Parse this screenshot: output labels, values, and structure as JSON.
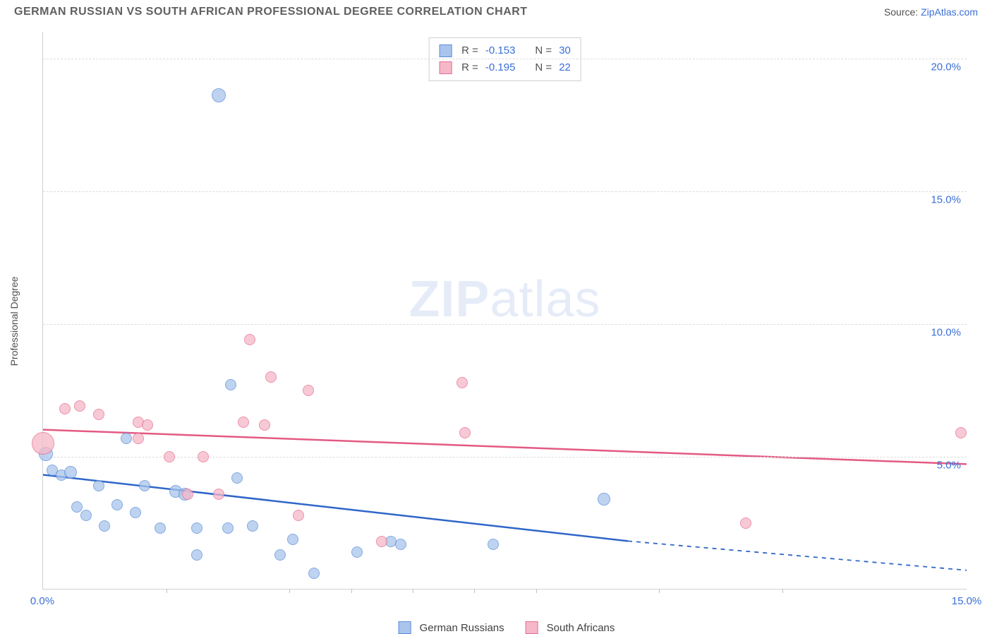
{
  "title": "GERMAN RUSSIAN VS SOUTH AFRICAN PROFESSIONAL DEGREE CORRELATION CHART",
  "source_prefix": "Source: ",
  "source_name": "ZipAtlas.com",
  "y_axis_label": "Professional Degree",
  "watermark_bold": "ZIP",
  "watermark_rest": "atlas",
  "chart": {
    "type": "scatter",
    "background_color": "#ffffff",
    "grid_color": "#dcdcdc",
    "axis_color": "#d0d0d0",
    "xlim": [
      0,
      15
    ],
    "ylim": [
      0,
      21
    ],
    "x_tick_labels": [
      {
        "v": 0,
        "t": "0.0%"
      },
      {
        "v": 15,
        "t": "15.0%"
      }
    ],
    "x_minor_ticks": [
      2,
      4,
      5,
      6,
      7,
      8,
      10,
      12
    ],
    "y_ticks": [
      {
        "v": 5,
        "t": "5.0%",
        "dashed": true
      },
      {
        "v": 10,
        "t": "10.0%",
        "dashed": true
      },
      {
        "v": 15,
        "t": "15.0%",
        "dashed": true
      },
      {
        "v": 20,
        "t": "20.0%",
        "dashed": true
      }
    ],
    "series": [
      {
        "name": "German Russians",
        "fill": "#a9c5ec",
        "stroke": "#5b8dd9",
        "line_color": "#2f66c9",
        "r_label": "R = ",
        "r_value": "-0.153",
        "n_label": "N = ",
        "n_value": "30",
        "trend": {
          "x1": 0,
          "y1": 4.3,
          "x2": 9.5,
          "y2": 1.8,
          "dash_x2": 15,
          "dash_y2": 0.7
        },
        "points": [
          {
            "x": 0.05,
            "y": 5.1,
            "r": 10
          },
          {
            "x": 0.15,
            "y": 4.5,
            "r": 8
          },
          {
            "x": 0.3,
            "y": 4.3,
            "r": 8
          },
          {
            "x": 0.45,
            "y": 4.4,
            "r": 9
          },
          {
            "x": 0.55,
            "y": 3.1,
            "r": 8
          },
          {
            "x": 0.9,
            "y": 3.9,
            "r": 8
          },
          {
            "x": 0.7,
            "y": 2.8,
            "r": 8
          },
          {
            "x": 1.2,
            "y": 3.2,
            "r": 8
          },
          {
            "x": 1.0,
            "y": 2.4,
            "r": 8
          },
          {
            "x": 1.35,
            "y": 5.7,
            "r": 8
          },
          {
            "x": 1.5,
            "y": 2.9,
            "r": 8
          },
          {
            "x": 1.65,
            "y": 3.9,
            "r": 8
          },
          {
            "x": 1.9,
            "y": 2.3,
            "r": 8
          },
          {
            "x": 2.15,
            "y": 3.7,
            "r": 9
          },
          {
            "x": 2.3,
            "y": 3.6,
            "r": 9
          },
          {
            "x": 2.5,
            "y": 2.3,
            "r": 8
          },
          {
            "x": 2.5,
            "y": 1.3,
            "r": 8
          },
          {
            "x": 2.85,
            "y": 18.6,
            "r": 10
          },
          {
            "x": 3.0,
            "y": 2.3,
            "r": 8
          },
          {
            "x": 3.05,
            "y": 7.7,
            "r": 8
          },
          {
            "x": 3.15,
            "y": 4.2,
            "r": 8
          },
          {
            "x": 3.4,
            "y": 2.4,
            "r": 8
          },
          {
            "x": 3.85,
            "y": 1.3,
            "r": 8
          },
          {
            "x": 4.05,
            "y": 1.9,
            "r": 8
          },
          {
            "x": 4.4,
            "y": 0.6,
            "r": 8
          },
          {
            "x": 5.1,
            "y": 1.4,
            "r": 8
          },
          {
            "x": 5.65,
            "y": 1.8,
            "r": 8
          },
          {
            "x": 5.8,
            "y": 1.7,
            "r": 8
          },
          {
            "x": 7.3,
            "y": 1.7,
            "r": 8
          },
          {
            "x": 9.1,
            "y": 3.4,
            "r": 9
          }
        ]
      },
      {
        "name": "South Africans",
        "fill": "#f5b8c8",
        "stroke": "#e76d92",
        "line_color": "#e35a83",
        "r_label": "R = ",
        "r_value": "-0.195",
        "n_label": "N = ",
        "n_value": "22",
        "trend": {
          "x1": 0,
          "y1": 6.0,
          "x2": 15,
          "y2": 4.7
        },
        "points": [
          {
            "x": 0.0,
            "y": 5.5,
            "r": 16
          },
          {
            "x": 0.35,
            "y": 6.8,
            "r": 8
          },
          {
            "x": 0.6,
            "y": 6.9,
            "r": 8
          },
          {
            "x": 0.9,
            "y": 6.6,
            "r": 8
          },
          {
            "x": 1.55,
            "y": 5.7,
            "r": 8
          },
          {
            "x": 1.55,
            "y": 6.3,
            "r": 8
          },
          {
            "x": 1.7,
            "y": 6.2,
            "r": 8
          },
          {
            "x": 2.05,
            "y": 5.0,
            "r": 8
          },
          {
            "x": 2.35,
            "y": 3.6,
            "r": 8
          },
          {
            "x": 2.6,
            "y": 5.0,
            "r": 8
          },
          {
            "x": 2.85,
            "y": 3.6,
            "r": 8
          },
          {
            "x": 3.25,
            "y": 6.3,
            "r": 8
          },
          {
            "x": 3.35,
            "y": 9.4,
            "r": 8
          },
          {
            "x": 3.7,
            "y": 8.0,
            "r": 8
          },
          {
            "x": 3.6,
            "y": 6.2,
            "r": 8
          },
          {
            "x": 4.15,
            "y": 2.8,
            "r": 8
          },
          {
            "x": 4.3,
            "y": 7.5,
            "r": 8
          },
          {
            "x": 5.5,
            "y": 1.8,
            "r": 8
          },
          {
            "x": 6.8,
            "y": 7.8,
            "r": 8
          },
          {
            "x": 6.85,
            "y": 5.9,
            "r": 8
          },
          {
            "x": 11.4,
            "y": 2.5,
            "r": 8
          },
          {
            "x": 14.9,
            "y": 5.9,
            "r": 8
          }
        ]
      }
    ]
  }
}
